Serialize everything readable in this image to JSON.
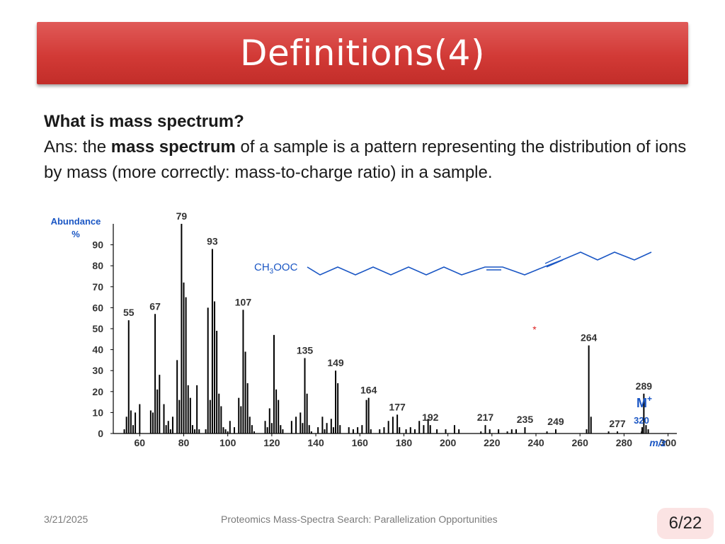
{
  "slide": {
    "title": "Definitions(4)",
    "question": "What is mass spectrum?",
    "answer": {
      "prefix": "Ans: the ",
      "bold": "mass spectrum",
      "suffix": " of a sample is a pattern representing the distribution of ions by mass (more correctly: mass-to-charge ratio) in a sample."
    },
    "footer": {
      "date": "3/21/2025",
      "center": "Proteomics Mass-Spectra Search: Parallelization  Opportunities",
      "page": "6/22"
    }
  },
  "chart_data": {
    "type": "bar",
    "ylabel_line1": "Abundance",
    "ylabel_line2": "%",
    "xlabel": "m/z",
    "xlim": [
      48,
      304
    ],
    "ylim": [
      0,
      100
    ],
    "xticks": [
      60,
      80,
      100,
      120,
      140,
      160,
      180,
      200,
      220,
      240,
      260,
      280,
      300
    ],
    "yticks": [
      0,
      10,
      20,
      30,
      40,
      50,
      60,
      70,
      80,
      90
    ],
    "molecular_ion": {
      "label": "M",
      "superscript": "+",
      "mz": 320,
      "mz_label": "320"
    },
    "structure_label": {
      "prefix": "CH",
      "subscript": "3",
      "suffix": "OOC"
    },
    "star_marker": "*",
    "peaks": [
      {
        "mz": 53,
        "ab": 2
      },
      {
        "mz": 54,
        "ab": 8
      },
      {
        "mz": 55,
        "ab": 54,
        "label": "55"
      },
      {
        "mz": 56,
        "ab": 11
      },
      {
        "mz": 57,
        "ab": 4
      },
      {
        "mz": 58,
        "ab": 10
      },
      {
        "mz": 60,
        "ab": 14
      },
      {
        "mz": 65,
        "ab": 11
      },
      {
        "mz": 66,
        "ab": 10
      },
      {
        "mz": 67,
        "ab": 57,
        "label": "67"
      },
      {
        "mz": 68,
        "ab": 21
      },
      {
        "mz": 69,
        "ab": 28
      },
      {
        "mz": 71,
        "ab": 14
      },
      {
        "mz": 72,
        "ab": 4
      },
      {
        "mz": 73,
        "ab": 6
      },
      {
        "mz": 74,
        "ab": 2
      },
      {
        "mz": 75,
        "ab": 8
      },
      {
        "mz": 77,
        "ab": 35
      },
      {
        "mz": 78,
        "ab": 16
      },
      {
        "mz": 79,
        "ab": 100,
        "label": "79"
      },
      {
        "mz": 80,
        "ab": 72
      },
      {
        "mz": 81,
        "ab": 65
      },
      {
        "mz": 82,
        "ab": 23
      },
      {
        "mz": 83,
        "ab": 17
      },
      {
        "mz": 84,
        "ab": 4
      },
      {
        "mz": 85,
        "ab": 2
      },
      {
        "mz": 86,
        "ab": 23
      },
      {
        "mz": 87,
        "ab": 2
      },
      {
        "mz": 90,
        "ab": 2
      },
      {
        "mz": 91,
        "ab": 60
      },
      {
        "mz": 92,
        "ab": 16
      },
      {
        "mz": 93,
        "ab": 88,
        "label": "93"
      },
      {
        "mz": 94,
        "ab": 63
      },
      {
        "mz": 95,
        "ab": 49
      },
      {
        "mz": 96,
        "ab": 19
      },
      {
        "mz": 97,
        "ab": 13
      },
      {
        "mz": 98,
        "ab": 3
      },
      {
        "mz": 99,
        "ab": 2
      },
      {
        "mz": 100,
        "ab": 1
      },
      {
        "mz": 101,
        "ab": 6
      },
      {
        "mz": 103,
        "ab": 3
      },
      {
        "mz": 105,
        "ab": 17
      },
      {
        "mz": 106,
        "ab": 13
      },
      {
        "mz": 107,
        "ab": 59,
        "label": "107"
      },
      {
        "mz": 108,
        "ab": 39
      },
      {
        "mz": 109,
        "ab": 24
      },
      {
        "mz": 110,
        "ab": 8
      },
      {
        "mz": 111,
        "ab": 4
      },
      {
        "mz": 112,
        "ab": 1
      },
      {
        "mz": 117,
        "ab": 6
      },
      {
        "mz": 118,
        "ab": 3
      },
      {
        "mz": 119,
        "ab": 12
      },
      {
        "mz": 120,
        "ab": 5
      },
      {
        "mz": 121,
        "ab": 47
      },
      {
        "mz": 122,
        "ab": 21
      },
      {
        "mz": 123,
        "ab": 16
      },
      {
        "mz": 124,
        "ab": 4
      },
      {
        "mz": 125,
        "ab": 2
      },
      {
        "mz": 129,
        "ab": 6
      },
      {
        "mz": 131,
        "ab": 8
      },
      {
        "mz": 133,
        "ab": 10
      },
      {
        "mz": 134,
        "ab": 5
      },
      {
        "mz": 135,
        "ab": 36,
        "label": "135"
      },
      {
        "mz": 136,
        "ab": 19
      },
      {
        "mz": 137,
        "ab": 4
      },
      {
        "mz": 138,
        "ab": 1
      },
      {
        "mz": 141,
        "ab": 3
      },
      {
        "mz": 143,
        "ab": 8
      },
      {
        "mz": 144,
        "ab": 2
      },
      {
        "mz": 145,
        "ab": 5
      },
      {
        "mz": 147,
        "ab": 7
      },
      {
        "mz": 148,
        "ab": 3
      },
      {
        "mz": 149,
        "ab": 30,
        "label": "149"
      },
      {
        "mz": 150,
        "ab": 24
      },
      {
        "mz": 151,
        "ab": 4
      },
      {
        "mz": 155,
        "ab": 3
      },
      {
        "mz": 157,
        "ab": 2
      },
      {
        "mz": 159,
        "ab": 3
      },
      {
        "mz": 161,
        "ab": 4
      },
      {
        "mz": 163,
        "ab": 16
      },
      {
        "mz": 164,
        "ab": 17,
        "label": "164"
      },
      {
        "mz": 165,
        "ab": 2
      },
      {
        "mz": 169,
        "ab": 2
      },
      {
        "mz": 171,
        "ab": 3
      },
      {
        "mz": 173,
        "ab": 6
      },
      {
        "mz": 175,
        "ab": 8
      },
      {
        "mz": 177,
        "ab": 9,
        "label": "177"
      },
      {
        "mz": 178,
        "ab": 3
      },
      {
        "mz": 181,
        "ab": 2
      },
      {
        "mz": 183,
        "ab": 3
      },
      {
        "mz": 185,
        "ab": 2
      },
      {
        "mz": 187,
        "ab": 6
      },
      {
        "mz": 189,
        "ab": 4
      },
      {
        "mz": 191,
        "ab": 7
      },
      {
        "mz": 192,
        "ab": 4,
        "label": "192"
      },
      {
        "mz": 195,
        "ab": 2
      },
      {
        "mz": 199,
        "ab": 2
      },
      {
        "mz": 203,
        "ab": 4
      },
      {
        "mz": 205,
        "ab": 2
      },
      {
        "mz": 215,
        "ab": 1
      },
      {
        "mz": 217,
        "ab": 4,
        "label": "217"
      },
      {
        "mz": 219,
        "ab": 2
      },
      {
        "mz": 223,
        "ab": 2
      },
      {
        "mz": 227,
        "ab": 1
      },
      {
        "mz": 229,
        "ab": 2
      },
      {
        "mz": 231,
        "ab": 2
      },
      {
        "mz": 235,
        "ab": 3,
        "label": "235"
      },
      {
        "mz": 245,
        "ab": 1
      },
      {
        "mz": 249,
        "ab": 2,
        "label": "249"
      },
      {
        "mz": 263,
        "ab": 2
      },
      {
        "mz": 264,
        "ab": 42,
        "label": "264"
      },
      {
        "mz": 265,
        "ab": 8
      },
      {
        "mz": 273,
        "ab": 1
      },
      {
        "mz": 277,
        "ab": 1,
        "label": "277"
      },
      {
        "mz": 288,
        "ab": 1
      },
      {
        "mz": 289,
        "ab": 19,
        "label": "289"
      },
      {
        "mz": 290,
        "ab": 4
      },
      {
        "mz": 291,
        "ab": 2
      }
    ]
  }
}
